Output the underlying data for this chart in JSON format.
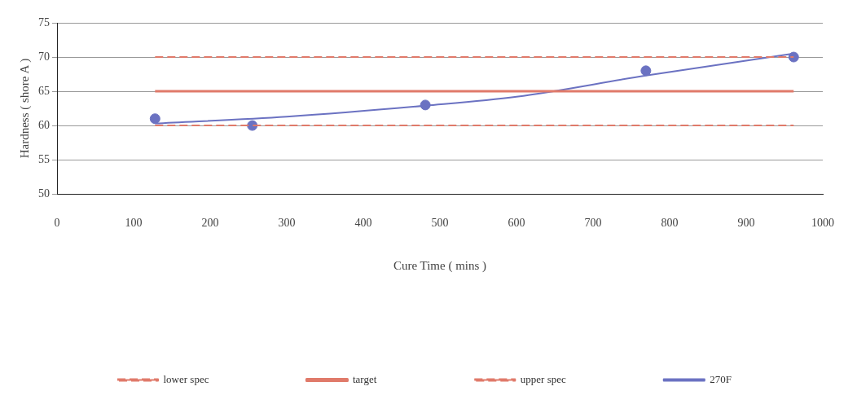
{
  "chart_data": {
    "type": "scatter",
    "xlabel": "Cure Time ( mins )",
    "ylabel": "Hardness ( shore A )",
    "xlim": [
      0,
      1000
    ],
    "xticks": [
      0,
      100,
      200,
      300,
      400,
      500,
      600,
      700,
      800,
      900,
      1000
    ],
    "ylim": [
      50,
      75
    ],
    "yticks": [
      50,
      55,
      60,
      65,
      70,
      75
    ],
    "grid": "y",
    "legend": "bottom",
    "series": [
      {
        "name": "lower spec",
        "type": "line",
        "line_style": "dashed",
        "marker": "none",
        "color": "#e07a6a",
        "x": [
          128,
          962
        ],
        "values": [
          60,
          60
        ]
      },
      {
        "name": "target",
        "type": "line",
        "line_style": "solid",
        "marker": "none",
        "color": "#e07a6a",
        "x": [
          128,
          962
        ],
        "values": [
          65,
          65
        ]
      },
      {
        "name": "upper spec",
        "type": "line",
        "line_style": "dashed",
        "marker": "none",
        "color": "#e07a6a",
        "x": [
          128,
          962
        ],
        "values": [
          70,
          70
        ]
      },
      {
        "name": "270F",
        "type": "line",
        "line_style": "solid",
        "marker": "none",
        "color": "#6b72c2",
        "x": [
          128,
          300,
          481,
          600,
          769,
          962
        ],
        "values": [
          60.3,
          61.3,
          62.9,
          64.2,
          67.3,
          70.5
        ]
      },
      {
        "type": "scatter",
        "marker": "circle",
        "color": "#6b72c2",
        "x": [
          128,
          255,
          481,
          769,
          962
        ],
        "values": [
          61,
          60,
          63,
          68,
          70
        ]
      }
    ]
  }
}
